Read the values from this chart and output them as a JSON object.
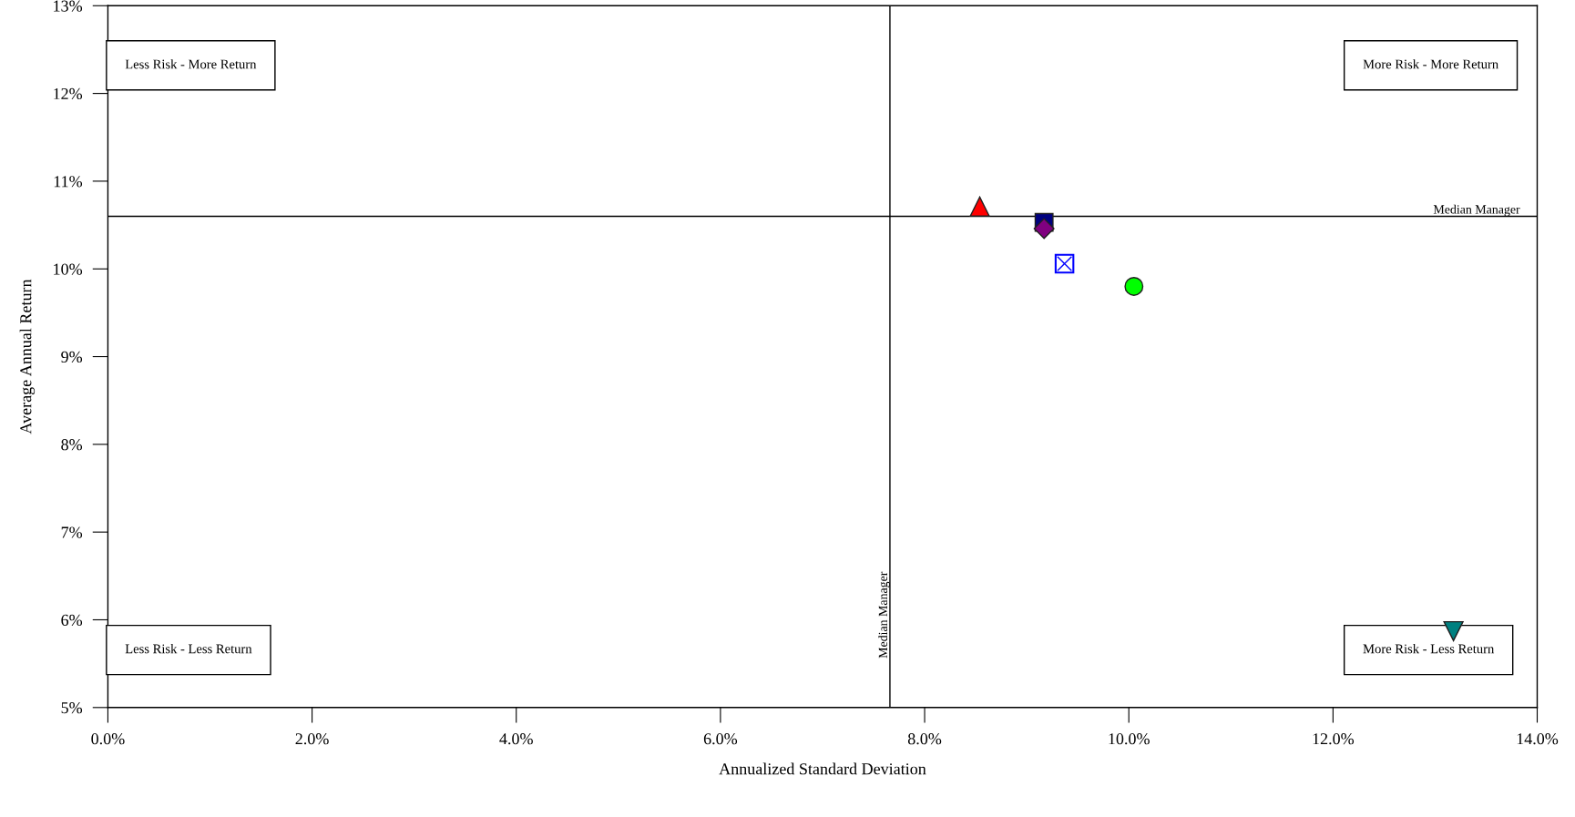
{
  "chart_data": {
    "type": "scatter",
    "xlabel": "Annualized Standard Deviation",
    "ylabel": "Average Annual Return",
    "series": [
      {
        "color": "#ff0000",
        "marker": "triangle",
        "x": [
          8.54
        ],
        "values": [
          10.71
        ]
      },
      {
        "color": "#000080",
        "marker": "square",
        "x": [
          9.17
        ],
        "values": [
          10.53
        ]
      },
      {
        "color": "#800080",
        "marker": "diamond",
        "x": [
          9.17
        ],
        "values": [
          10.46
        ]
      },
      {
        "color": "#0000ff",
        "x": [
          9.37
        ],
        "values": [
          10.06
        ]
      },
      {
        "color": "#00ff00",
        "marker": "circle",
        "x": [
          10.05
        ],
        "values": [
          9.8
        ]
      },
      {
        "color": "#008080",
        "marker": "triangle_down",
        "x": [
          13.18
        ],
        "values": [
          5.87
        ]
      }
    ],
    "xlim": [
      0,
      14
    ],
    "ylim": [
      5,
      13
    ],
    "xticks": [
      {
        "value": 0,
        "label": "0.0%"
      },
      {
        "value": 2,
        "label": "2.0%"
      },
      {
        "value": 4,
        "label": "4.0%"
      },
      {
        "value": 6,
        "label": "6.0%"
      },
      {
        "value": 8,
        "label": "8.0%"
      },
      {
        "value": 10,
        "label": "10.0%"
      },
      {
        "value": 12,
        "label": "12.0%"
      },
      {
        "value": 14,
        "label": "14.0%"
      }
    ],
    "yticks": [
      {
        "value": 5,
        "label": "5%"
      },
      {
        "value": 6,
        "label": "6%"
      },
      {
        "value": 7,
        "label": "7%"
      },
      {
        "value": 8,
        "label": "8%"
      },
      {
        "value": 9,
        "label": "9%"
      },
      {
        "value": 10,
        "label": "10%"
      },
      {
        "value": 11,
        "label": "11%"
      },
      {
        "value": 12,
        "label": "12%"
      },
      {
        "value": 13,
        "label": "13%"
      }
    ],
    "ref_lines": [
      {
        "axis": "x",
        "value": 7.66,
        "label": "Median Manager",
        "color": "#000000"
      },
      {
        "axis": "y",
        "value": 10.6,
        "label": "Median Manager",
        "color": "#000000"
      }
    ],
    "annotations": [
      "Less Risk - More Return",
      "More Risk - More Return",
      "Less Risk - Less Return",
      "More Risk - Less Return"
    ],
    "grid": false,
    "legend": false
  }
}
